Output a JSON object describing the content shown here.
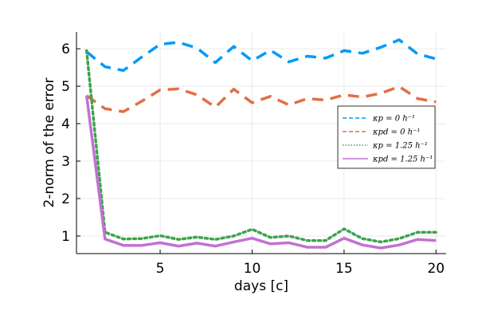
{
  "chart_data": {
    "type": "line",
    "xlabel": "days [c]",
    "ylabel": "2-norm of the error",
    "xlim": [
      0.45,
      20.55
    ],
    "ylim": [
      0.53,
      6.45
    ],
    "x_ticks": [
      5,
      10,
      15,
      20
    ],
    "y_ticks": [
      1,
      2,
      3,
      4,
      5,
      6
    ],
    "grid": true,
    "legend_position": "right",
    "x": [
      1,
      2,
      3,
      4,
      5,
      6,
      7,
      8,
      9,
      10,
      11,
      12,
      13,
      14,
      15,
      16,
      17,
      18,
      19,
      20
    ],
    "series": [
      {
        "name": "κp = 0 h⁻¹",
        "style": "dashed",
        "color": "#009af9",
        "values": [
          5.92,
          5.52,
          5.42,
          5.78,
          6.12,
          6.17,
          6.02,
          5.63,
          6.06,
          5.68,
          5.96,
          5.65,
          5.8,
          5.75,
          5.95,
          5.88,
          6.04,
          6.24,
          5.86,
          5.73
        ]
      },
      {
        "name": "κpd = 0 h⁻¹",
        "style": "dashed",
        "color": "#e26f46",
        "values": [
          4.75,
          4.4,
          4.32,
          4.6,
          4.9,
          4.93,
          4.77,
          4.44,
          4.92,
          4.56,
          4.73,
          4.5,
          4.67,
          4.63,
          4.77,
          4.71,
          4.81,
          4.99,
          4.67,
          4.58
        ]
      },
      {
        "name": "κp = 1.25 h⁻¹",
        "style": "dotted",
        "color": "#3da44d",
        "values": [
          5.95,
          1.1,
          0.92,
          0.93,
          1.01,
          0.91,
          0.97,
          0.91,
          1.0,
          1.18,
          0.96,
          1.0,
          0.88,
          0.88,
          1.19,
          0.93,
          0.84,
          0.93,
          1.1,
          1.1
        ]
      },
      {
        "name": "κpd = 1.25 h⁻¹",
        "style": "solid",
        "color": "#c271d2",
        "values": [
          4.75,
          0.92,
          0.75,
          0.75,
          0.82,
          0.73,
          0.81,
          0.73,
          0.84,
          0.94,
          0.79,
          0.82,
          0.7,
          0.7,
          0.94,
          0.76,
          0.68,
          0.76,
          0.91,
          0.88
        ]
      }
    ]
  }
}
